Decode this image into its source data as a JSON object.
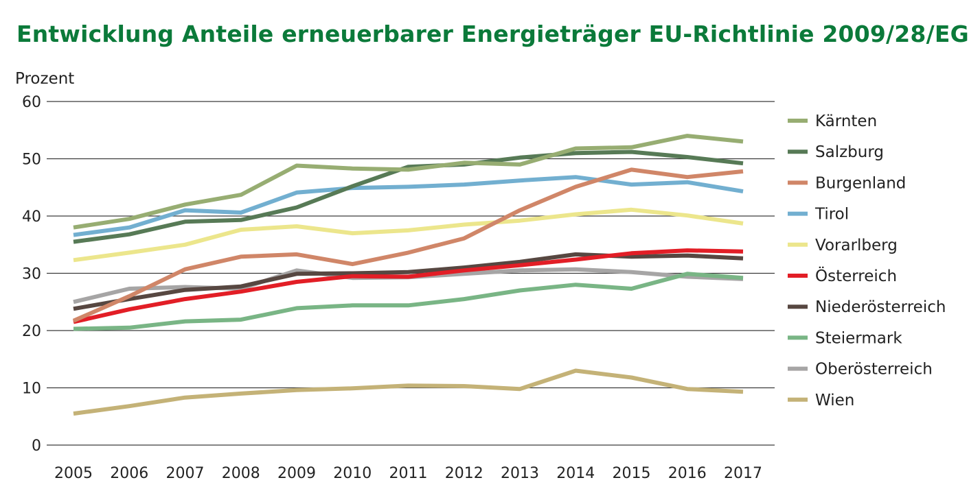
{
  "chart_data": {
    "type": "line",
    "title": "Entwicklung Anteile erneuerbarer Energieträger EU-Richtlinie 2009/28/EG",
    "ylabel": "Prozent",
    "xlabel": "",
    "ylim": [
      0,
      60
    ],
    "yticks": [
      0,
      10,
      20,
      30,
      40,
      50,
      60
    ],
    "x": [
      "2005",
      "2006",
      "2007",
      "2008",
      "2009",
      "2010",
      "2011",
      "2012",
      "2013",
      "2014",
      "2015",
      "2016",
      "2017"
    ],
    "grid": "horizontal",
    "legend_position": "right",
    "series": [
      {
        "name": "Kärnten",
        "color": "#97ad72",
        "values": [
          38.0,
          39.5,
          42.0,
          43.7,
          48.8,
          48.3,
          48.1,
          49.3,
          49.0,
          51.8,
          52.0,
          54.0,
          53.0
        ]
      },
      {
        "name": "Salzburg",
        "color": "#577a56",
        "values": [
          35.5,
          36.8,
          39.0,
          39.3,
          41.5,
          45.2,
          48.6,
          49.0,
          50.2,
          51.0,
          51.2,
          50.3,
          49.2
        ]
      },
      {
        "name": "Burgenland",
        "color": "#d08668",
        "values": [
          21.7,
          26.0,
          30.7,
          32.9,
          33.3,
          31.6,
          33.6,
          36.1,
          41.0,
          45.1,
          48.1,
          46.8,
          47.8
        ]
      },
      {
        "name": "Tirol",
        "color": "#72afd0",
        "values": [
          36.7,
          38.0,
          41.0,
          40.6,
          44.1,
          44.9,
          45.1,
          45.5,
          46.2,
          46.8,
          45.5,
          45.9,
          44.3
        ]
      },
      {
        "name": "Vorarlberg",
        "color": "#ece68c",
        "values": [
          32.3,
          33.6,
          35.0,
          37.6,
          38.2,
          37.0,
          37.5,
          38.5,
          39.2,
          40.3,
          41.1,
          40.1,
          38.7
        ]
      },
      {
        "name": "Österreich",
        "color": "#e21e26",
        "values": [
          21.5,
          23.7,
          25.5,
          26.8,
          28.5,
          29.5,
          29.4,
          30.5,
          31.4,
          32.4,
          33.5,
          34.0,
          33.8
        ]
      },
      {
        "name": "Niederösterreich",
        "color": "#574741",
        "values": [
          23.8,
          25.5,
          27.1,
          27.7,
          29.9,
          30.0,
          30.2,
          31.0,
          32.0,
          33.3,
          32.9,
          33.1,
          32.6
        ]
      },
      {
        "name": "Steiermark",
        "color": "#79b585",
        "values": [
          20.3,
          20.5,
          21.6,
          21.9,
          23.9,
          24.4,
          24.4,
          25.5,
          27.0,
          28.0,
          27.3,
          29.9,
          29.2
        ]
      },
      {
        "name": "Oberösterreich",
        "color": "#a6a5a5",
        "values": [
          25.0,
          27.3,
          27.6,
          27.3,
          30.5,
          29.2,
          29.3,
          29.9,
          30.5,
          30.7,
          30.2,
          29.4,
          29.0
        ]
      },
      {
        "name": "Wien",
        "color": "#c4b277",
        "values": [
          5.5,
          6.8,
          8.3,
          9.0,
          9.6,
          9.9,
          10.4,
          10.3,
          9.8,
          13.0,
          11.8,
          9.8,
          9.3
        ]
      }
    ]
  }
}
